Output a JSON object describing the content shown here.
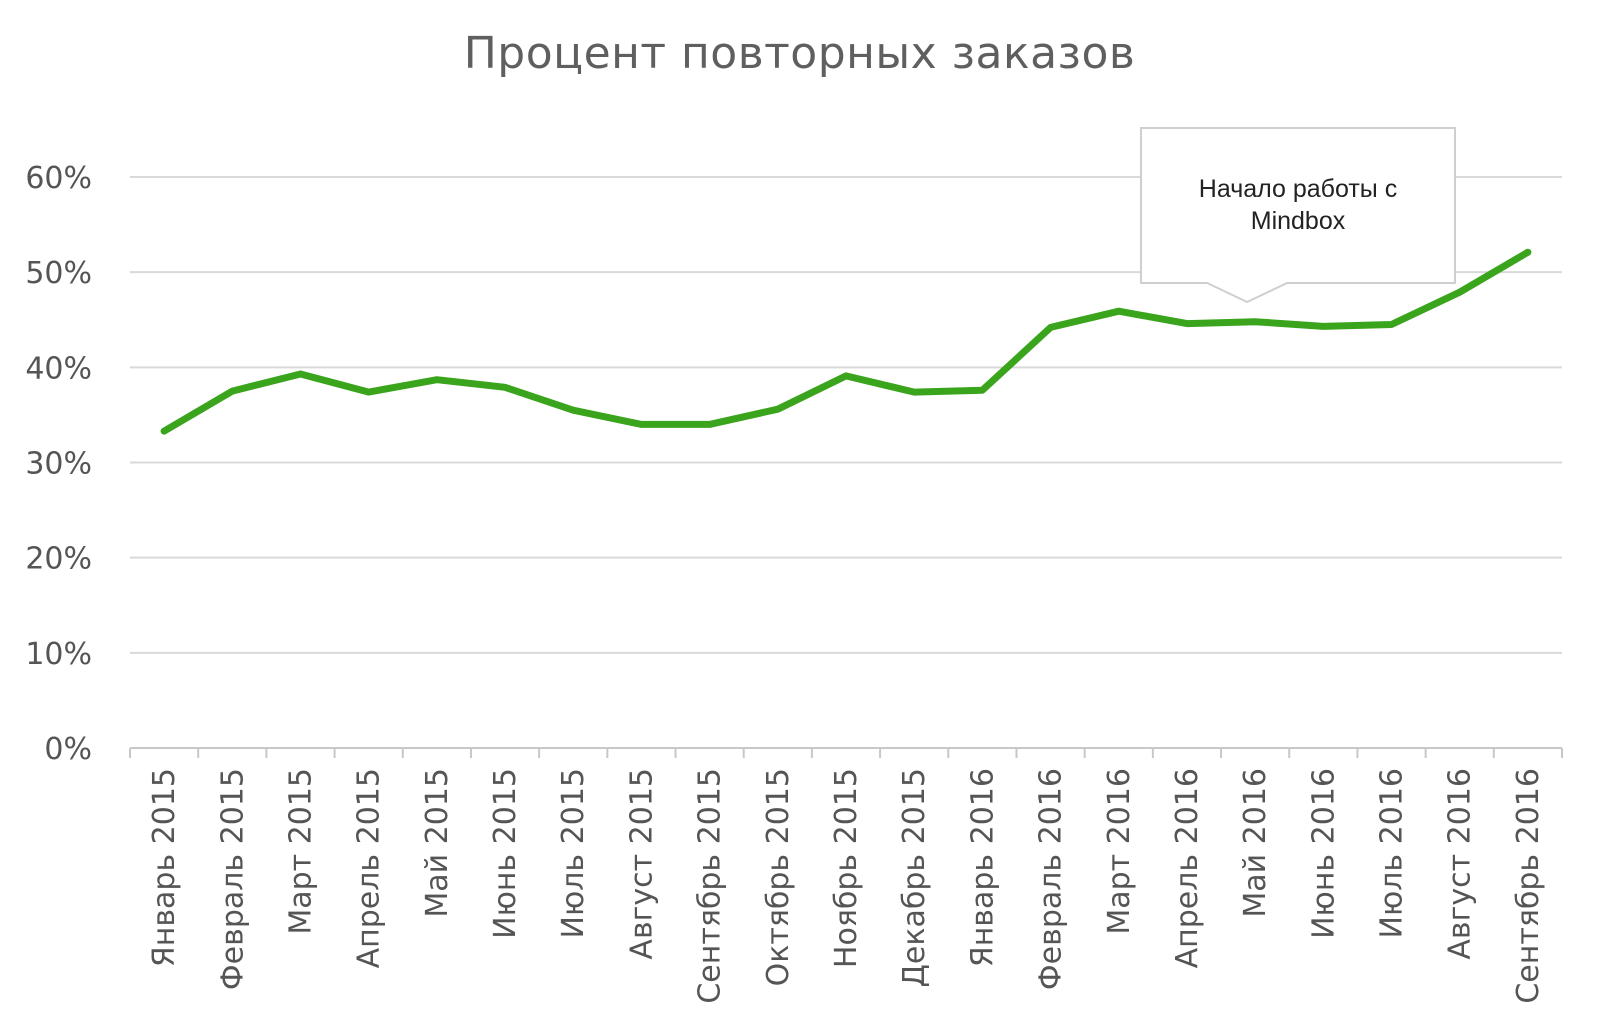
{
  "chart_data": {
    "type": "line",
    "title": "Процент повторных заказов",
    "xlabel": "",
    "ylabel": "",
    "categories": [
      "Январь 2015",
      "Февраль 2015",
      "Март 2015",
      "Апрель 2015",
      "Май 2015",
      "Июнь 2015",
      "Июль 2015",
      "Август 2015",
      "Сентябрь 2015",
      "Октябрь 2015",
      "Ноябрь 2015",
      "Декабрь 2015",
      "Январь 2016",
      "Февраль 2016",
      "Март 2016",
      "Апрель 2016",
      "Май 2016",
      "Июнь 2016",
      "Июль 2016",
      "Август 2016",
      "Сентябрь 2016"
    ],
    "series": [
      {
        "name": "",
        "color": "#3aa51c",
        "values": [
          33.3,
          37.5,
          39.3,
          37.4,
          38.7,
          37.9,
          35.5,
          34.0,
          34.0,
          35.6,
          39.1,
          37.4,
          37.6,
          44.2,
          45.9,
          44.6,
          44.8,
          44.3,
          44.5,
          47.9,
          52.1
        ]
      }
    ],
    "ylim": [
      0,
      60
    ],
    "yticks": [
      0,
      10,
      20,
      30,
      40,
      50,
      60
    ],
    "ytick_labels": [
      "0%",
      "10%",
      "20%",
      "30%",
      "40%",
      "50%",
      "60%"
    ],
    "grid": true,
    "legend": "none",
    "annotations": [
      {
        "text_lines": [
          "Начало работы с",
          "Mindbox"
        ],
        "points_to_category": "Май 2016"
      }
    ]
  }
}
